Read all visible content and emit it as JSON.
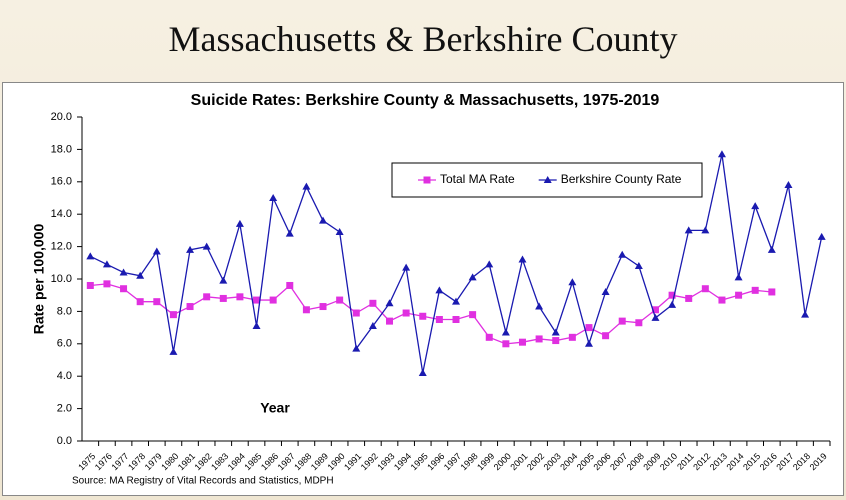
{
  "header": {
    "title": "Massachusetts & Berkshire County"
  },
  "chart_data": {
    "type": "line",
    "title": "Suicide Rates: Berkshire County & Massachusetts, 1975-2019",
    "y_label": "Rate per 100,000",
    "x_label": "Year",
    "source": "Source: MA Registry of Vital Records and Statistics, MDPH",
    "categories": [
      "1975",
      "1976",
      "1977",
      "1978",
      "1979",
      "1980",
      "1981",
      "1982",
      "1983",
      "1984",
      "1985",
      "1986",
      "1987",
      "1988",
      "1989",
      "1990",
      "1991",
      "1992",
      "1993",
      "1994",
      "1995",
      "1996",
      "1997",
      "1998",
      "1999",
      "2000",
      "2001",
      "2002",
      "2003",
      "2004",
      "2005",
      "2006",
      "2007",
      "2008",
      "2009",
      "2010",
      "2011",
      "2012",
      "2013",
      "2014",
      "2015",
      "2016",
      "2017",
      "2018",
      "2019"
    ],
    "series": [
      {
        "name": "Total MA Rate",
        "color": "#e030e0",
        "marker": "square",
        "values": [
          9.6,
          9.7,
          9.4,
          8.6,
          8.6,
          7.8,
          8.3,
          8.9,
          8.8,
          8.9,
          8.7,
          8.7,
          9.6,
          8.1,
          8.3,
          8.7,
          7.9,
          8.5,
          7.4,
          7.9,
          7.7,
          7.5,
          7.5,
          7.8,
          6.4,
          6.0,
          6.1,
          6.3,
          6.2,
          6.4,
          7.0,
          6.5,
          7.4,
          7.3,
          8.1,
          9.0,
          8.8,
          9.4,
          8.7,
          9.0,
          9.3,
          9.2,
          null,
          null,
          null
        ]
      },
      {
        "name": "Berkshire County Rate",
        "color": "#1a1ab0",
        "marker": "triangle",
        "values": [
          11.4,
          10.9,
          10.4,
          10.2,
          11.7,
          5.5,
          11.8,
          12.0,
          9.9,
          13.4,
          7.1,
          15.0,
          12.8,
          15.7,
          13.6,
          12.9,
          5.7,
          7.1,
          8.5,
          10.7,
          4.2,
          9.3,
          8.6,
          10.1,
          10.9,
          6.7,
          11.2,
          8.3,
          6.7,
          9.8,
          6.0,
          9.2,
          11.5,
          10.8,
          7.6,
          8.4,
          13.0,
          13.0,
          17.7,
          10.1,
          14.5,
          11.8,
          15.8,
          7.8,
          12.6
        ]
      }
    ],
    "ylim": [
      0,
      20
    ],
    "yticks": [
      {
        "value": 0,
        "label": "0.0"
      },
      {
        "value": 2,
        "label": "2.0"
      },
      {
        "value": 4,
        "label": "4.0"
      },
      {
        "value": 6,
        "label": "6.0"
      },
      {
        "value": 8,
        "label": "8.0"
      },
      {
        "value": 10,
        "label": "10.0"
      },
      {
        "value": 12,
        "label": "12.0"
      },
      {
        "value": 14,
        "label": "14.0"
      },
      {
        "value": 16,
        "label": "16.0"
      },
      {
        "value": 18,
        "label": "18.0"
      },
      {
        "value": 20,
        "label": "20.0"
      }
    ],
    "grid": false,
    "legend": "top-right"
  }
}
